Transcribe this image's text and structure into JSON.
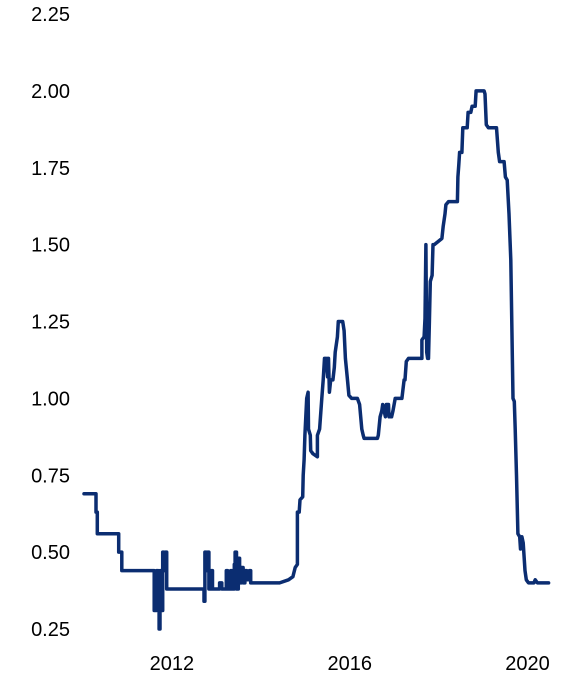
{
  "chart_data": {
    "type": "line",
    "title": "",
    "xlabel": "",
    "ylabel": "",
    "xlim": [
      2010.0,
      2021.0
    ],
    "ylim": [
      0.25,
      2.25
    ],
    "grid": false,
    "legend": "none",
    "x_ticks": [
      {
        "value": 2012,
        "label": "2012"
      },
      {
        "value": 2016,
        "label": "2016"
      },
      {
        "value": 2020,
        "label": "2020"
      }
    ],
    "y_ticks": [
      {
        "value": 0.25,
        "label": "0.25"
      },
      {
        "value": 0.5,
        "label": "0.50"
      },
      {
        "value": 0.75,
        "label": "0.75"
      },
      {
        "value": 1.0,
        "label": "1.00"
      },
      {
        "value": 1.25,
        "label": "1.25"
      },
      {
        "value": 1.5,
        "label": "1.50"
      },
      {
        "value": 1.75,
        "label": "1.75"
      },
      {
        "value": 2.0,
        "label": "2.00"
      },
      {
        "value": 2.25,
        "label": "2.25"
      }
    ],
    "series": [
      {
        "color": "#0b2d71",
        "points": [
          [
            2010.0,
            0.69
          ],
          [
            2010.27,
            0.69
          ],
          [
            2010.27,
            0.63
          ],
          [
            2010.3,
            0.63
          ],
          [
            2010.3,
            0.56
          ],
          [
            2010.78,
            0.56
          ],
          [
            2010.78,
            0.5
          ],
          [
            2010.85,
            0.5
          ],
          [
            2010.85,
            0.44
          ],
          [
            2011.58,
            0.44
          ],
          [
            2011.58,
            0.31
          ],
          [
            2011.63,
            0.31
          ],
          [
            2011.63,
            0.44
          ],
          [
            2011.67,
            0.44
          ],
          [
            2011.67,
            0.38
          ],
          [
            2011.69,
            0.38
          ],
          [
            2011.69,
            0.25
          ],
          [
            2011.71,
            0.25
          ],
          [
            2011.71,
            0.44
          ],
          [
            2011.74,
            0.44
          ],
          [
            2011.74,
            0.31
          ],
          [
            2011.77,
            0.31
          ],
          [
            2011.77,
            0.5
          ],
          [
            2011.8,
            0.5
          ],
          [
            2011.8,
            0.44
          ],
          [
            2011.83,
            0.44
          ],
          [
            2011.83,
            0.5
          ],
          [
            2011.86,
            0.5
          ],
          [
            2011.86,
            0.38
          ],
          [
            2012.7,
            0.38
          ],
          [
            2012.7,
            0.34
          ],
          [
            2012.72,
            0.34
          ],
          [
            2012.72,
            0.5
          ],
          [
            2012.75,
            0.5
          ],
          [
            2012.75,
            0.44
          ],
          [
            2012.78,
            0.44
          ],
          [
            2012.78,
            0.5
          ],
          [
            2012.81,
            0.5
          ],
          [
            2012.81,
            0.38
          ],
          [
            2012.86,
            0.38
          ],
          [
            2012.86,
            0.44
          ],
          [
            2012.89,
            0.44
          ],
          [
            2012.89,
            0.38
          ],
          [
            2013.05,
            0.38
          ],
          [
            2013.05,
            0.4
          ],
          [
            2013.1,
            0.4
          ],
          [
            2013.1,
            0.38
          ],
          [
            2013.2,
            0.38
          ],
          [
            2013.2,
            0.44
          ],
          [
            2013.23,
            0.44
          ],
          [
            2013.23,
            0.38
          ],
          [
            2013.3,
            0.38
          ],
          [
            2013.3,
            0.44
          ],
          [
            2013.33,
            0.44
          ],
          [
            2013.33,
            0.38
          ],
          [
            2013.38,
            0.38
          ],
          [
            2013.38,
            0.46
          ],
          [
            2013.4,
            0.46
          ],
          [
            2013.4,
            0.5
          ],
          [
            2013.43,
            0.5
          ],
          [
            2013.43,
            0.38
          ],
          [
            2013.47,
            0.38
          ],
          [
            2013.47,
            0.48
          ],
          [
            2013.5,
            0.48
          ],
          [
            2013.5,
            0.4
          ],
          [
            2013.54,
            0.4
          ],
          [
            2013.54,
            0.45
          ],
          [
            2013.58,
            0.45
          ],
          [
            2013.58,
            0.4
          ],
          [
            2013.62,
            0.4
          ],
          [
            2013.62,
            0.44
          ],
          [
            2013.66,
            0.44
          ],
          [
            2013.66,
            0.41
          ],
          [
            2013.72,
            0.41
          ],
          [
            2013.72,
            0.44
          ],
          [
            2013.75,
            0.44
          ],
          [
            2013.75,
            0.4
          ],
          [
            2014.4,
            0.4
          ],
          [
            2014.6,
            0.41
          ],
          [
            2014.7,
            0.42
          ],
          [
            2014.75,
            0.45
          ],
          [
            2014.8,
            0.46
          ],
          [
            2014.8,
            0.63
          ],
          [
            2014.84,
            0.63
          ],
          [
            2014.86,
            0.67
          ],
          [
            2014.92,
            0.68
          ],
          [
            2014.93,
            0.75
          ],
          [
            2014.95,
            0.8
          ],
          [
            2014.97,
            0.88
          ],
          [
            2014.99,
            0.94
          ],
          [
            2015.01,
            1.0
          ],
          [
            2015.04,
            1.02
          ],
          [
            2015.05,
            0.9
          ],
          [
            2015.09,
            0.88
          ],
          [
            2015.1,
            0.83
          ],
          [
            2015.15,
            0.82
          ],
          [
            2015.25,
            0.81
          ],
          [
            2015.25,
            0.88
          ],
          [
            2015.3,
            0.9
          ],
          [
            2015.35,
            1.0
          ],
          [
            2015.38,
            1.06
          ],
          [
            2015.41,
            1.13
          ],
          [
            2015.45,
            1.13
          ],
          [
            2015.48,
            1.07
          ],
          [
            2015.48,
            1.13
          ],
          [
            2015.5,
            1.13
          ],
          [
            2015.52,
            1.02
          ],
          [
            2015.55,
            1.06
          ],
          [
            2015.6,
            1.06
          ],
          [
            2015.63,
            1.1
          ],
          [
            2015.65,
            1.15
          ],
          [
            2015.7,
            1.2
          ],
          [
            2015.72,
            1.25
          ],
          [
            2015.82,
            1.25
          ],
          [
            2015.85,
            1.22
          ],
          [
            2015.88,
            1.13
          ],
          [
            2015.92,
            1.07
          ],
          [
            2015.96,
            1.01
          ],
          [
            2016.02,
            1.0
          ],
          [
            2016.15,
            1.0
          ],
          [
            2016.2,
            0.98
          ],
          [
            2016.25,
            0.9
          ],
          [
            2016.28,
            0.88
          ],
          [
            2016.3,
            0.87
          ],
          [
            2016.6,
            0.87
          ],
          [
            2016.62,
            0.88
          ],
          [
            2016.66,
            0.94
          ],
          [
            2016.7,
            0.96
          ],
          [
            2016.72,
            0.98
          ],
          [
            2016.75,
            0.96
          ],
          [
            2016.78,
            0.94
          ],
          [
            2016.8,
            0.98
          ],
          [
            2016.85,
            0.98
          ],
          [
            2016.86,
            0.94
          ],
          [
            2016.92,
            0.94
          ],
          [
            2016.95,
            0.96
          ],
          [
            2017.0,
            1.0
          ],
          [
            2017.15,
            1.0
          ],
          [
            2017.2,
            1.06
          ],
          [
            2017.22,
            1.06
          ],
          [
            2017.25,
            1.12
          ],
          [
            2017.3,
            1.13
          ],
          [
            2017.6,
            1.13
          ],
          [
            2017.6,
            1.19
          ],
          [
            2017.65,
            1.2
          ],
          [
            2017.67,
            1.26
          ],
          [
            2017.69,
            1.5
          ],
          [
            2017.71,
            1.15
          ],
          [
            2017.73,
            1.13
          ],
          [
            2017.75,
            1.13
          ],
          [
            2017.77,
            1.25
          ],
          [
            2017.79,
            1.38
          ],
          [
            2017.83,
            1.4
          ],
          [
            2017.85,
            1.5
          ],
          [
            2017.88,
            1.5
          ],
          [
            2018.05,
            1.52
          ],
          [
            2018.08,
            1.56
          ],
          [
            2018.12,
            1.6
          ],
          [
            2018.14,
            1.63
          ],
          [
            2018.2,
            1.64
          ],
          [
            2018.4,
            1.64
          ],
          [
            2018.41,
            1.72
          ],
          [
            2018.43,
            1.76
          ],
          [
            2018.45,
            1.8
          ],
          [
            2018.5,
            1.8
          ],
          [
            2018.52,
            1.88
          ],
          [
            2018.62,
            1.88
          ],
          [
            2018.64,
            1.93
          ],
          [
            2018.7,
            1.93
          ],
          [
            2018.73,
            1.95
          ],
          [
            2018.8,
            1.95
          ],
          [
            2018.82,
            2.0
          ],
          [
            2019.0,
            2.0
          ],
          [
            2019.02,
            1.99
          ],
          [
            2019.05,
            1.89
          ],
          [
            2019.1,
            1.88
          ],
          [
            2019.28,
            1.88
          ],
          [
            2019.32,
            1.8
          ],
          [
            2019.35,
            1.77
          ],
          [
            2019.45,
            1.77
          ],
          [
            2019.48,
            1.72
          ],
          [
            2019.52,
            1.71
          ],
          [
            2019.56,
            1.6
          ],
          [
            2019.6,
            1.45
          ],
          [
            2019.65,
            1.0
          ],
          [
            2019.68,
            0.99
          ],
          [
            2019.7,
            0.9
          ],
          [
            2019.73,
            0.75
          ],
          [
            2019.76,
            0.56
          ],
          [
            2019.8,
            0.55
          ],
          [
            2019.82,
            0.51
          ],
          [
            2019.85,
            0.55
          ],
          [
            2019.88,
            0.53
          ],
          [
            2019.92,
            0.44
          ],
          [
            2019.95,
            0.41
          ],
          [
            2020.0,
            0.4
          ],
          [
            2020.12,
            0.4
          ],
          [
            2020.15,
            0.41
          ],
          [
            2020.2,
            0.4
          ],
          [
            2020.45,
            0.4
          ]
        ]
      }
    ]
  }
}
